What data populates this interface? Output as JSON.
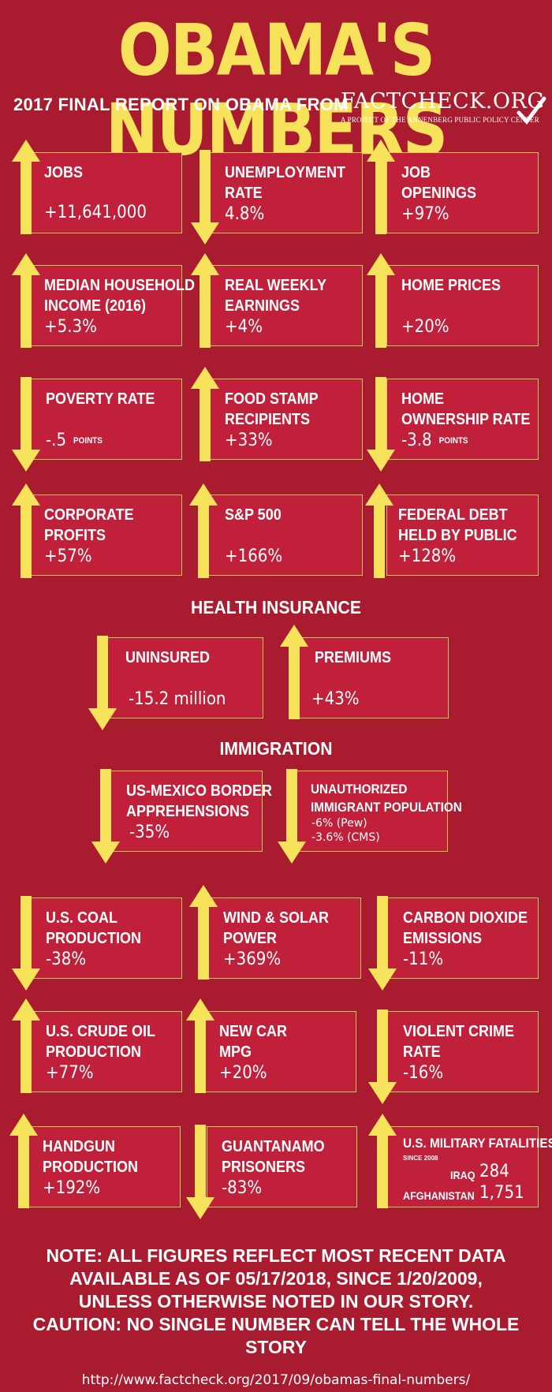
{
  "header": {
    "title": "OBAMA'S NUMBERS",
    "subtitle": "2017 FINAL REPORT ON OBAMA FROM",
    "logo_name": "FACTCHECK.ORG",
    "logo_tagline": "A PROJECT OF THE ANNENBERG PUBLIC POLICY CENTER"
  },
  "colors": {
    "background": "#a91b2e",
    "card": "#c0203a",
    "accent": "#f7e35b"
  },
  "cards": {
    "jobs": {
      "label": "JOBS",
      "value": "+11,641,000",
      "direction": "up"
    },
    "unemployment": {
      "label1": "UNEMPLOYMENT",
      "label2": "RATE",
      "value": "4.8%",
      "direction": "down"
    },
    "job_openings": {
      "label1": "JOB",
      "label2": "OPENINGS",
      "value": "+97%",
      "direction": "up"
    },
    "median_income": {
      "label1": "MEDIAN HOUSEHOLD",
      "label2": "INCOME (2016)",
      "value": "+5.3%",
      "direction": "up"
    },
    "weekly_earnings": {
      "label1": "REAL WEEKLY",
      "label2": "EARNINGS",
      "value": "+4%",
      "direction": "up"
    },
    "home_prices": {
      "label": "HOME PRICES",
      "value": "+20%",
      "direction": "up"
    },
    "poverty": {
      "label": "POVERTY RATE",
      "value": "-.5",
      "unit": "POINTS",
      "direction": "down"
    },
    "food_stamps": {
      "label1": "FOOD STAMP",
      "label2": "RECIPIENTS",
      "value": "+33%",
      "direction": "up"
    },
    "home_ownership": {
      "label1": "HOME",
      "label2": "OWNERSHIP RATE",
      "value": "-3.8",
      "unit": "POINTS",
      "direction": "down"
    },
    "corporate_profits": {
      "label1": "CORPORATE",
      "label2": "PROFITS",
      "value": "+57%",
      "direction": "up"
    },
    "sp500": {
      "label": "S&P 500",
      "value": "+166%",
      "direction": "up"
    },
    "federal_debt": {
      "label1": "FEDERAL DEBT",
      "label2": "HELD BY PUBLIC",
      "value": "+128%",
      "direction": "up"
    },
    "uninsured": {
      "label": "UNINSURED",
      "value": "-15.2 million",
      "direction": "down"
    },
    "premiums": {
      "label": "PREMIUMS",
      "value": "+43%",
      "direction": "up"
    },
    "border": {
      "label1": "US-MEXICO BORDER",
      "label2": "APPREHENSIONS",
      "value": "-35%",
      "direction": "down"
    },
    "unauthorized": {
      "label1": "UNAUTHORIZED",
      "label2": "IMMIGRANT POPULATION",
      "line1": "-6% (Pew)",
      "line2": "-3.6% (CMS)",
      "direction": "down"
    },
    "coal": {
      "label1": "U.S. COAL",
      "label2": "PRODUCTION",
      "value": "-38%",
      "direction": "down"
    },
    "wind_solar": {
      "label1": "WIND & SOLAR",
      "label2": "POWER",
      "value": "+369%",
      "direction": "up"
    },
    "co2": {
      "label1": "CARBON DIOXIDE",
      "label2": "EMISSIONS",
      "value": "-11%",
      "direction": "down"
    },
    "crude_oil": {
      "label1": "U.S. CRUDE OIL",
      "label2": "PRODUCTION",
      "value": "+77%",
      "direction": "up"
    },
    "car_mpg": {
      "label1": "NEW CAR",
      "label2": "MPG",
      "value": "+20%",
      "direction": "up"
    },
    "violent_crime": {
      "label1": "VIOLENT CRIME",
      "label2": "RATE",
      "value": "-16%",
      "direction": "down"
    },
    "handgun": {
      "label1": "HANDGUN",
      "label2": "PRODUCTION",
      "value": "+192%",
      "direction": "up"
    },
    "guantanamo": {
      "label1": "GUANTANAMO",
      "label2": "PRISONERS",
      "value": "-83%",
      "direction": "down"
    },
    "military": {
      "label": "U.S. MILITARY FATALITIES",
      "since": "SINCE 2008",
      "iraq_label": "IRAQ",
      "iraq_value": "284",
      "afg_label": "AFGHANISTAN",
      "afg_value": "1,751",
      "direction": "up"
    }
  },
  "sections": {
    "health": "HEALTH INSURANCE",
    "immigration": "IMMIGRATION"
  },
  "footer": {
    "note1": "NOTE:  ALL FIGURES REFLECT MOST RECENT DATA",
    "note2": "AVAILABLE AS OF 05/17/2018, SINCE 1/20/2009,",
    "note3": "UNLESS OTHERWISE NOTED IN OUR STORY.",
    "note4": "CAUTION: NO SINGLE NUMBER CAN TELL THE WHOLE STORY",
    "url": "http://www.factcheck.org/2017/09/obamas-final-numbers/"
  }
}
